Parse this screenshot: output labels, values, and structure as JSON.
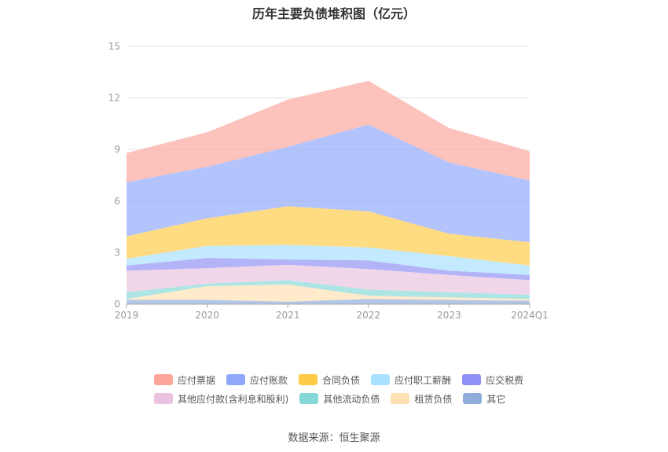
{
  "page": {
    "title": "历年主要负债堆积图（亿元）",
    "source": "数据来源：恒生聚源"
  },
  "chart_data": {
    "type": "area",
    "stacked": true,
    "categories": [
      "2019",
      "2020",
      "2021",
      "2022",
      "2023",
      "2024Q1"
    ],
    "ylim": [
      0,
      15
    ],
    "yticks": [
      0,
      3,
      6,
      9,
      12,
      15
    ],
    "grid": true,
    "legend_position": "bottom",
    "series": [
      {
        "name": "其它",
        "color": "#8EADDB",
        "values": [
          0.25,
          0.25,
          0.15,
          0.3,
          0.25,
          0.2
        ]
      },
      {
        "name": "租赁负债",
        "color": "#FFE0B3",
        "values": [
          0.05,
          0.8,
          1.0,
          0.2,
          0.15,
          0.1
        ]
      },
      {
        "name": "其他流动负债",
        "color": "#86D8D8",
        "values": [
          0.4,
          0.15,
          0.25,
          0.35,
          0.3,
          0.25
        ]
      },
      {
        "name": "其他应付款(含利息和股利)",
        "color": "#EBC2E0",
        "values": [
          1.25,
          0.9,
          0.9,
          1.2,
          1.0,
          0.85
        ]
      },
      {
        "name": "应交税费",
        "color": "#8F8FF5",
        "values": [
          0.3,
          0.6,
          0.3,
          0.5,
          0.25,
          0.3
        ]
      },
      {
        "name": "应付职工薪酬",
        "color": "#A8E0FF",
        "values": [
          0.4,
          0.7,
          0.85,
          0.75,
          0.85,
          0.55
        ]
      },
      {
        "name": "合同负债",
        "color": "#FFCB47",
        "values": [
          1.3,
          1.6,
          2.25,
          2.1,
          1.3,
          1.35
        ]
      },
      {
        "name": "应付账款",
        "color": "#8FA8FA",
        "values": [
          3.15,
          3.0,
          3.45,
          5.05,
          4.15,
          3.6
        ]
      },
      {
        "name": "应付票据",
        "color": "#FBA59B",
        "values": [
          1.7,
          2.0,
          2.75,
          2.55,
          2.0,
          1.7
        ]
      }
    ],
    "legend_order": [
      "应付票据",
      "应付账款",
      "合同负债",
      "应付职工薪酬",
      "应交税费",
      "其他应付款(含利息和股利)",
      "其他流动负债",
      "租赁负债",
      "其它"
    ]
  }
}
